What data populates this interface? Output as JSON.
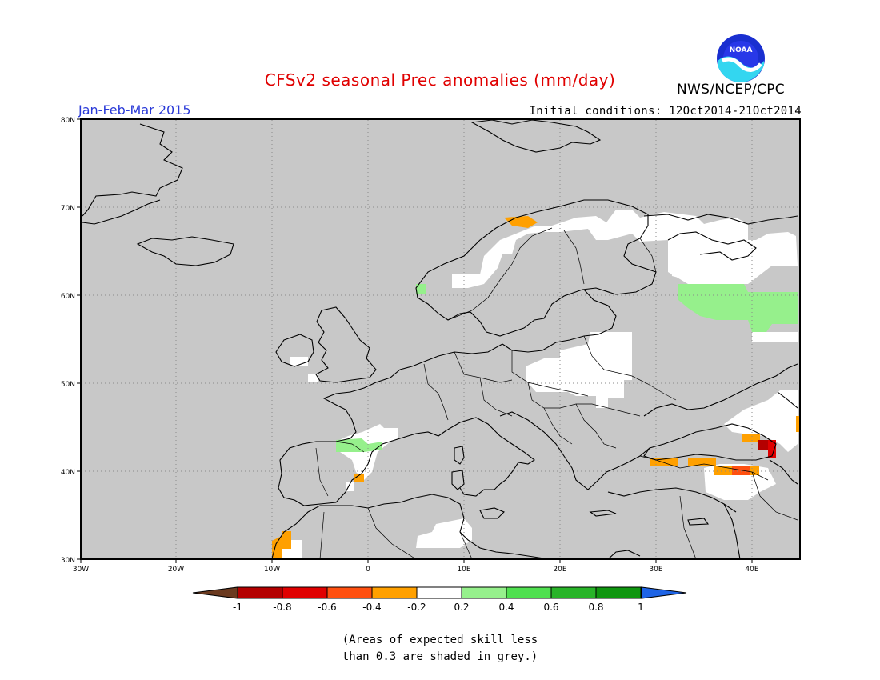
{
  "header": {
    "title": "CFSv2 seasonal Prec anomalies (mm/day)",
    "season": "Jan-Feb-Mar 2015",
    "initial_conditions": "Initial conditions: 12Oct2014-21Oct2014",
    "agency": "NWS/NCEP/CPC",
    "logo_text": "NOAA"
  },
  "map": {
    "lon_ticks": [
      "30W",
      "20W",
      "10W",
      "0",
      "10E",
      "20E",
      "30E",
      "40E"
    ],
    "lat_ticks": [
      "80N",
      "70N",
      "60N",
      "50N",
      "40N",
      "30N"
    ],
    "lon_range": [
      -30,
      45
    ],
    "lat_range": [
      30,
      80
    ],
    "no_skill_color": "#c8c8c8",
    "grid": "dotted"
  },
  "legend": {
    "labels": [
      "-1",
      "-0.8",
      "-0.6",
      "-0.4",
      "-0.2",
      "0.2",
      "0.4",
      "0.6",
      "0.8",
      "1"
    ],
    "colors": {
      "below_min": "#6b3a1f",
      "bins": [
        "#b40000",
        "#e00000",
        "#ff5010",
        "#ffa000",
        "#ffffff",
        "#96f08c",
        "#50e050",
        "#28b428",
        "#0f960f"
      ],
      "above_max": "#1e64e6"
    }
  },
  "footnote": {
    "line1": "(Areas of expected skill less",
    "line2": "than 0.3 are shaded in grey.)"
  }
}
